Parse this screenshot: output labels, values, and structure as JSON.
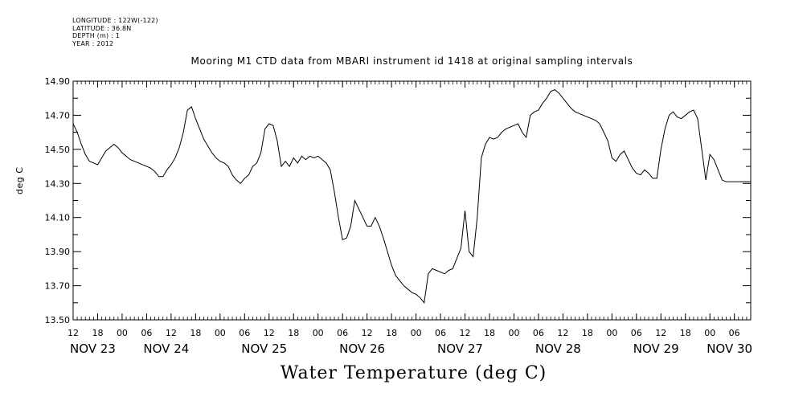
{
  "meta": {
    "longitude": "LONGITUDE : 122W(-122)",
    "latitude": "LATITUDE : 36.8N",
    "depth": "DEPTH (m) : 1",
    "year": "YEAR : 2012"
  },
  "chart_data": {
    "type": "line",
    "title": "Mooring M1 CTD data from MBARI instrument id 1418 at original sampling intervals",
    "ylabel": "deg C",
    "xlabel": "Water Temperature (deg C)",
    "ylim": [
      13.5,
      14.9
    ],
    "y_ticks": [
      "13.50",
      "13.70",
      "13.90",
      "14.10",
      "14.30",
      "14.50",
      "14.70",
      "14.90"
    ],
    "x_range_hours": [
      0,
      166
    ],
    "hour_ticks": [
      {
        "h": 0,
        "label": "12"
      },
      {
        "h": 6,
        "label": "18"
      },
      {
        "h": 12,
        "label": "00"
      },
      {
        "h": 18,
        "label": "06"
      },
      {
        "h": 24,
        "label": "12"
      },
      {
        "h": 30,
        "label": "18"
      },
      {
        "h": 36,
        "label": "00"
      },
      {
        "h": 42,
        "label": "06"
      },
      {
        "h": 48,
        "label": "12"
      },
      {
        "h": 54,
        "label": "18"
      },
      {
        "h": 60,
        "label": "00"
      },
      {
        "h": 66,
        "label": "06"
      },
      {
        "h": 72,
        "label": "12"
      },
      {
        "h": 78,
        "label": "18"
      },
      {
        "h": 84,
        "label": "00"
      },
      {
        "h": 90,
        "label": "06"
      },
      {
        "h": 96,
        "label": "12"
      },
      {
        "h": 102,
        "label": "18"
      },
      {
        "h": 108,
        "label": "00"
      },
      {
        "h": 114,
        "label": "06"
      },
      {
        "h": 120,
        "label": "12"
      },
      {
        "h": 126,
        "label": "18"
      },
      {
        "h": 132,
        "label": "00"
      },
      {
        "h": 138,
        "label": "06"
      },
      {
        "h": 144,
        "label": "12"
      },
      {
        "h": 150,
        "label": "18"
      },
      {
        "h": 156,
        "label": "00"
      },
      {
        "h": 162,
        "label": "06"
      }
    ],
    "day_labels": [
      {
        "h": 0,
        "label": "NOV 23"
      },
      {
        "h": 18,
        "label": "NOV 24"
      },
      {
        "h": 42,
        "label": "NOV 25"
      },
      {
        "h": 66,
        "label": "NOV 26"
      },
      {
        "h": 90,
        "label": "NOV 27"
      },
      {
        "h": 114,
        "label": "NOV 28"
      },
      {
        "h": 138,
        "label": "NOV 29"
      },
      {
        "h": 156,
        "label": "NOV 30"
      }
    ],
    "series": [
      {
        "x": [
          0,
          1,
          2,
          3,
          4,
          5,
          6,
          7,
          8,
          9,
          10,
          11,
          12,
          13,
          14,
          15,
          16,
          17,
          18,
          19,
          20,
          21,
          22,
          23,
          24,
          25,
          26,
          27,
          28,
          29,
          30,
          31,
          32,
          33,
          34,
          35,
          36,
          37,
          38,
          39,
          40,
          41,
          42,
          43,
          44,
          45,
          46,
          47,
          48,
          49,
          50,
          51,
          52,
          53,
          54,
          55,
          56,
          57,
          58,
          59,
          60,
          61,
          62,
          63,
          64,
          65,
          66,
          67,
          68,
          69,
          70,
          71,
          72,
          73,
          74,
          75,
          76,
          77,
          78,
          79,
          80,
          81,
          82,
          83,
          84,
          85,
          86,
          87,
          88,
          89,
          90,
          91,
          92,
          93,
          94,
          95,
          96,
          97,
          98,
          99,
          100,
          101,
          102,
          103,
          104,
          105,
          106,
          107,
          108,
          109,
          110,
          111,
          112,
          113,
          114,
          115,
          116,
          117,
          118,
          119,
          120,
          121,
          122,
          123,
          124,
          125,
          126,
          127,
          128,
          129,
          130,
          131,
          132,
          133,
          134,
          135,
          136,
          137,
          138,
          139,
          140,
          141,
          142,
          143,
          144,
          145,
          146,
          147,
          148,
          149,
          150,
          151,
          152,
          153,
          154,
          155,
          156,
          157,
          158,
          159,
          160,
          161,
          162,
          163,
          164,
          165,
          166
        ],
        "values": [
          14.65,
          14.6,
          14.53,
          14.47,
          14.43,
          14.42,
          14.41,
          14.45,
          14.49,
          14.51,
          14.53,
          14.51,
          14.48,
          14.46,
          14.44,
          14.43,
          14.42,
          14.41,
          14.4,
          14.39,
          14.37,
          14.34,
          14.34,
          14.38,
          14.41,
          14.45,
          14.51,
          14.6,
          14.73,
          14.75,
          14.68,
          14.62,
          14.56,
          14.52,
          14.48,
          14.45,
          14.43,
          14.42,
          14.4,
          14.35,
          14.32,
          14.3,
          14.33,
          14.35,
          14.4,
          14.42,
          14.48,
          14.62,
          14.65,
          14.64,
          14.55,
          14.4,
          14.43,
          14.4,
          14.45,
          14.42,
          14.46,
          14.44,
          14.46,
          14.45,
          14.46,
          14.44,
          14.42,
          14.38,
          14.25,
          14.1,
          13.97,
          13.98,
          14.05,
          14.2,
          14.15,
          14.1,
          14.05,
          14.05,
          14.1,
          14.05,
          13.98,
          13.9,
          13.82,
          13.76,
          13.73,
          13.7,
          13.68,
          13.66,
          13.65,
          13.63,
          13.6,
          13.77,
          13.8,
          13.79,
          13.78,
          13.77,
          13.79,
          13.8,
          13.86,
          13.92,
          14.14,
          13.9,
          13.87,
          14.1,
          14.45,
          14.53,
          14.57,
          14.56,
          14.57,
          14.6,
          14.62,
          14.63,
          14.64,
          14.65,
          14.6,
          14.57,
          14.7,
          14.72,
          14.73,
          14.77,
          14.8,
          14.84,
          14.85,
          14.83,
          14.8,
          14.77,
          14.74,
          14.72,
          14.71,
          14.7,
          14.69,
          14.68,
          14.67,
          14.65,
          14.6,
          14.55,
          14.45,
          14.43,
          14.47,
          14.49,
          14.44,
          14.39,
          14.36,
          14.35,
          14.38,
          14.36,
          14.33,
          14.33,
          14.5,
          14.62,
          14.7,
          14.72,
          14.69,
          14.68,
          14.7,
          14.72,
          14.73,
          14.68,
          14.5,
          14.32,
          14.47,
          14.44,
          14.38,
          14.32,
          14.31,
          14.31,
          14.31,
          14.31,
          14.31,
          14.31,
          14.31
        ],
        "note_end_hour": 160
      }
    ]
  }
}
